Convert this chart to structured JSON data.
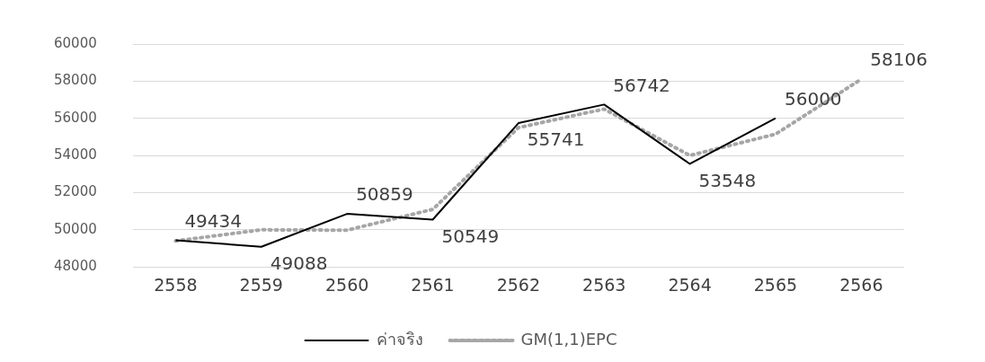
{
  "chart_data": {
    "type": "line",
    "categories": [
      "2558",
      "2559",
      "2560",
      "2561",
      "2562",
      "2563",
      "2564",
      "2565",
      "2566"
    ],
    "series": [
      {
        "name": "ค่าจริง",
        "color": "#000000",
        "line_style": "solid",
        "values": [
          49434,
          49088,
          50859,
          50549,
          55741,
          56742,
          53548,
          56000,
          null
        ],
        "value_labels": [
          "49434",
          "49088",
          "50859",
          "50549",
          "55741",
          "56742",
          "53548",
          "56000",
          null
        ]
      },
      {
        "name": "GM(1,1)EPC",
        "color": "#a6a6a6",
        "line_style": "dotted",
        "values": [
          49400,
          50000,
          49980,
          51100,
          55500,
          56500,
          54000,
          55150,
          58106
        ],
        "value_labels": [
          null,
          null,
          null,
          null,
          null,
          null,
          null,
          null,
          "58106"
        ]
      }
    ],
    "ylim": [
      48000,
      60000
    ],
    "yticks": [
      48000,
      50000,
      52000,
      54000,
      56000,
      58000,
      60000
    ],
    "grid": "y",
    "legend": "bottom",
    "marker": "none"
  }
}
